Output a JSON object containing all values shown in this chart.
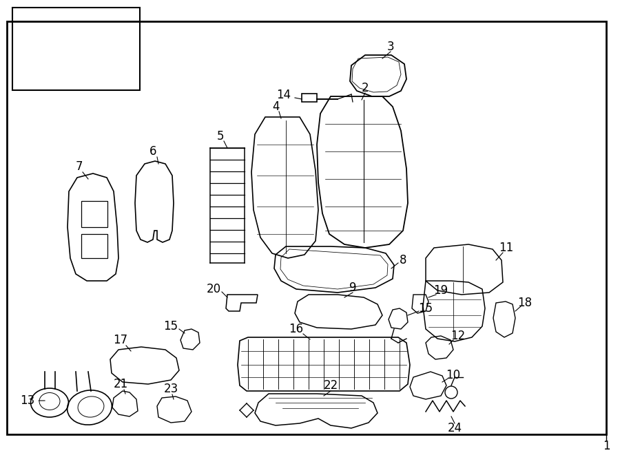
{
  "bg_color": "#ffffff",
  "border_color": "#000000",
  "line_color": "#000000",
  "page_number": "1"
}
